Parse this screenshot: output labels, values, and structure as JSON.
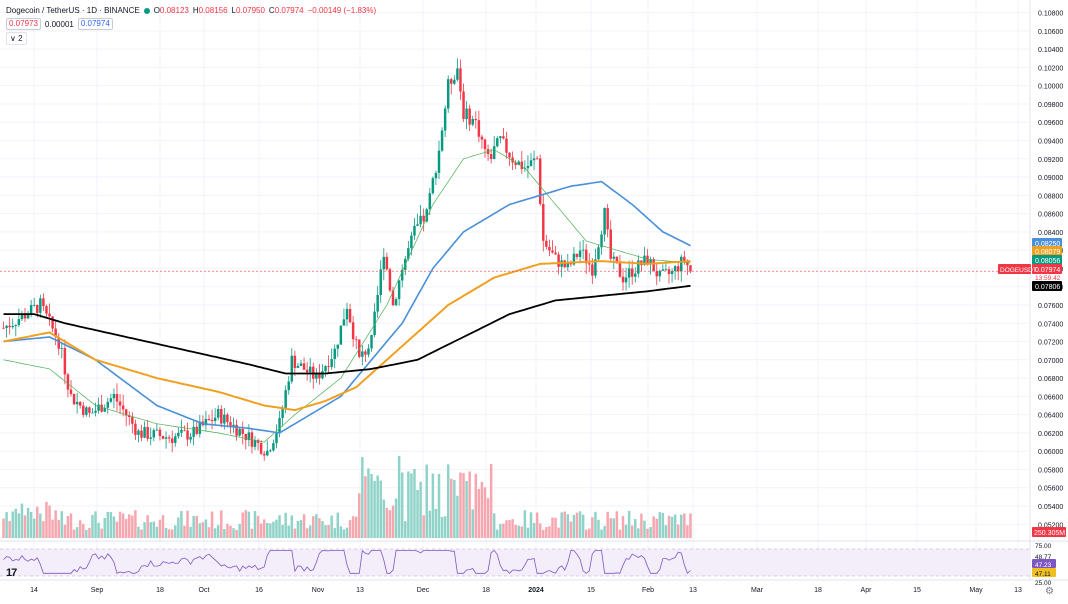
{
  "header": {
    "title": "Dogecoin / TetherUS · 1D · BINANCE",
    "ohlc": [
      {
        "k": "O",
        "v": "0.08123"
      },
      {
        "k": "H",
        "v": "0.08156"
      },
      {
        "k": "L",
        "v": "0.07950"
      },
      {
        "k": "C",
        "v": "0.07974"
      }
    ],
    "change": "−0.00149 (−1.83%)",
    "sell_price": "0.07973",
    "spread": "0.00001",
    "buy_price": "0.07974",
    "collapse_label": "∨ 2"
  },
  "colors": {
    "up": "#089981",
    "down": "#f23645",
    "vol_up": "#8fd3c8",
    "vol_down": "#f5a6ae",
    "ma_fast": "#4caf50",
    "ma_blue": "#4a90d9",
    "ma_orange": "#f0a020",
    "ma_black": "#000000",
    "rsi": "#7e57c2"
  },
  "chart_data": {
    "type": "candlestick",
    "symbol": "DOGEUSDT",
    "price_axis": {
      "ticks": [
        "0.10800",
        "0.10600",
        "0.10400",
        "0.10200",
        "0.10000",
        "0.09800",
        "0.09600",
        "0.09400",
        "0.09200",
        "0.09000",
        "0.08800",
        "0.08600",
        "0.08400",
        "0.08200",
        "0.08000",
        "0.07800",
        "0.07600",
        "0.07400",
        "0.07200",
        "0.07000",
        "0.06800",
        "0.06600",
        "0.06400",
        "0.06200",
        "0.06000",
        "0.05800",
        "0.05600",
        "0.05400",
        "0.05200"
      ],
      "range": [
        0.0505,
        0.1085
      ]
    },
    "time_axis": [
      "14",
      "Sep",
      "18",
      "Oct",
      "16",
      "Nov",
      "13",
      "Dec",
      "18",
      "2024",
      "15",
      "Feb",
      "13",
      "Mar",
      "18",
      "Apr",
      "15",
      "May",
      "13"
    ],
    "time_axis_bold": "2024",
    "markers": [
      {
        "label": "0.08250",
        "value": 0.0825,
        "color": "#4a90d9"
      },
      {
        "label": "0.08079",
        "value": 0.0808,
        "color": "#f0a020"
      },
      {
        "label": "0.08056",
        "value": 0.0806,
        "color": "#089981"
      },
      {
        "label": "0.07974",
        "value": 0.0797,
        "color": "#f23645",
        "symbol": "DOGEUSDT",
        "countdown": "13:59:42"
      },
      {
        "label": "0.07806",
        "value": 0.0781,
        "color": "#000000"
      }
    ],
    "volume_label": "250.305M",
    "rsi_axis": [
      "75.00",
      "48.77",
      "47.23",
      "47.11",
      "25.00"
    ],
    "series_anchors": {
      "close": [
        [
          0,
          0.0735
        ],
        [
          12,
          0.076
        ],
        [
          18,
          0.072
        ],
        [
          22,
          0.066
        ],
        [
          28,
          0.064
        ],
        [
          36,
          0.066
        ],
        [
          44,
          0.062
        ],
        [
          55,
          0.0615
        ],
        [
          62,
          0.062
        ],
        [
          70,
          0.064
        ],
        [
          80,
          0.0615
        ],
        [
          86,
          0.06
        ],
        [
          90,
          0.063
        ],
        [
          94,
          0.07
        ],
        [
          98,
          0.069
        ],
        [
          102,
          0.068
        ],
        [
          108,
          0.071
        ],
        [
          112,
          0.076
        ],
        [
          116,
          0.07
        ],
        [
          120,
          0.072
        ],
        [
          124,
          0.082
        ],
        [
          127,
          0.076
        ],
        [
          130,
          0.08
        ],
        [
          134,
          0.084
        ],
        [
          138,
          0.086
        ],
        [
          142,
          0.093
        ],
        [
          145,
          0.1
        ],
        [
          148,
          0.102
        ],
        [
          150,
          0.097
        ],
        [
          154,
          0.096
        ],
        [
          158,
          0.092
        ],
        [
          162,
          0.094
        ],
        [
          166,
          0.092
        ],
        [
          170,
          0.091
        ],
        [
          174,
          0.092
        ],
        [
          176,
          0.083
        ],
        [
          180,
          0.081
        ],
        [
          184,
          0.08
        ],
        [
          188,
          0.082
        ],
        [
          192,
          0.08
        ],
        [
          196,
          0.086
        ],
        [
          198,
          0.081
        ],
        [
          202,
          0.079
        ],
        [
          206,
          0.08
        ],
        [
          210,
          0.081
        ],
        [
          214,
          0.079
        ],
        [
          218,
          0.0795
        ],
        [
          222,
          0.081
        ],
        [
          224,
          0.0797
        ]
      ],
      "ma_fast": [
        [
          0,
          0.07
        ],
        [
          15,
          0.069
        ],
        [
          30,
          0.065
        ],
        [
          50,
          0.063
        ],
        [
          70,
          0.062
        ],
        [
          85,
          0.061
        ],
        [
          95,
          0.064
        ],
        [
          110,
          0.068
        ],
        [
          125,
          0.076
        ],
        [
          140,
          0.087
        ],
        [
          150,
          0.092
        ],
        [
          160,
          0.093
        ],
        [
          170,
          0.091
        ],
        [
          180,
          0.087
        ],
        [
          190,
          0.083
        ],
        [
          200,
          0.082
        ],
        [
          210,
          0.081
        ],
        [
          224,
          0.0806
        ]
      ],
      "ma_blue": [
        [
          0,
          0.072
        ],
        [
          15,
          0.0725
        ],
        [
          30,
          0.07
        ],
        [
          50,
          0.065
        ],
        [
          65,
          0.063
        ],
        [
          80,
          0.0625
        ],
        [
          90,
          0.062
        ],
        [
          100,
          0.064
        ],
        [
          110,
          0.066
        ],
        [
          120,
          0.07
        ],
        [
          130,
          0.074
        ],
        [
          140,
          0.08
        ],
        [
          150,
          0.084
        ],
        [
          165,
          0.087
        ],
        [
          175,
          0.088
        ],
        [
          185,
          0.089
        ],
        [
          195,
          0.0895
        ],
        [
          205,
          0.087
        ],
        [
          215,
          0.084
        ],
        [
          224,
          0.0825
        ]
      ],
      "ma_orange": [
        [
          0,
          0.072
        ],
        [
          15,
          0.073
        ],
        [
          30,
          0.07
        ],
        [
          50,
          0.068
        ],
        [
          70,
          0.0665
        ],
        [
          85,
          0.065
        ],
        [
          95,
          0.0645
        ],
        [
          105,
          0.0655
        ],
        [
          115,
          0.067
        ],
        [
          125,
          0.07
        ],
        [
          135,
          0.073
        ],
        [
          145,
          0.076
        ],
        [
          160,
          0.079
        ],
        [
          175,
          0.0805
        ],
        [
          195,
          0.0808
        ],
        [
          210,
          0.0805
        ],
        [
          224,
          0.0808
        ]
      ],
      "ma_black": [
        [
          0,
          0.075
        ],
        [
          10,
          0.075
        ],
        [
          20,
          0.074
        ],
        [
          40,
          0.0725
        ],
        [
          60,
          0.071
        ],
        [
          80,
          0.0695
        ],
        [
          92,
          0.0685
        ],
        [
          105,
          0.0685
        ],
        [
          120,
          0.069
        ],
        [
          135,
          0.07
        ],
        [
          150,
          0.0725
        ],
        [
          165,
          0.075
        ],
        [
          180,
          0.0765
        ],
        [
          195,
          0.077
        ],
        [
          210,
          0.0775
        ],
        [
          224,
          0.0781
        ]
      ]
    }
  }
}
